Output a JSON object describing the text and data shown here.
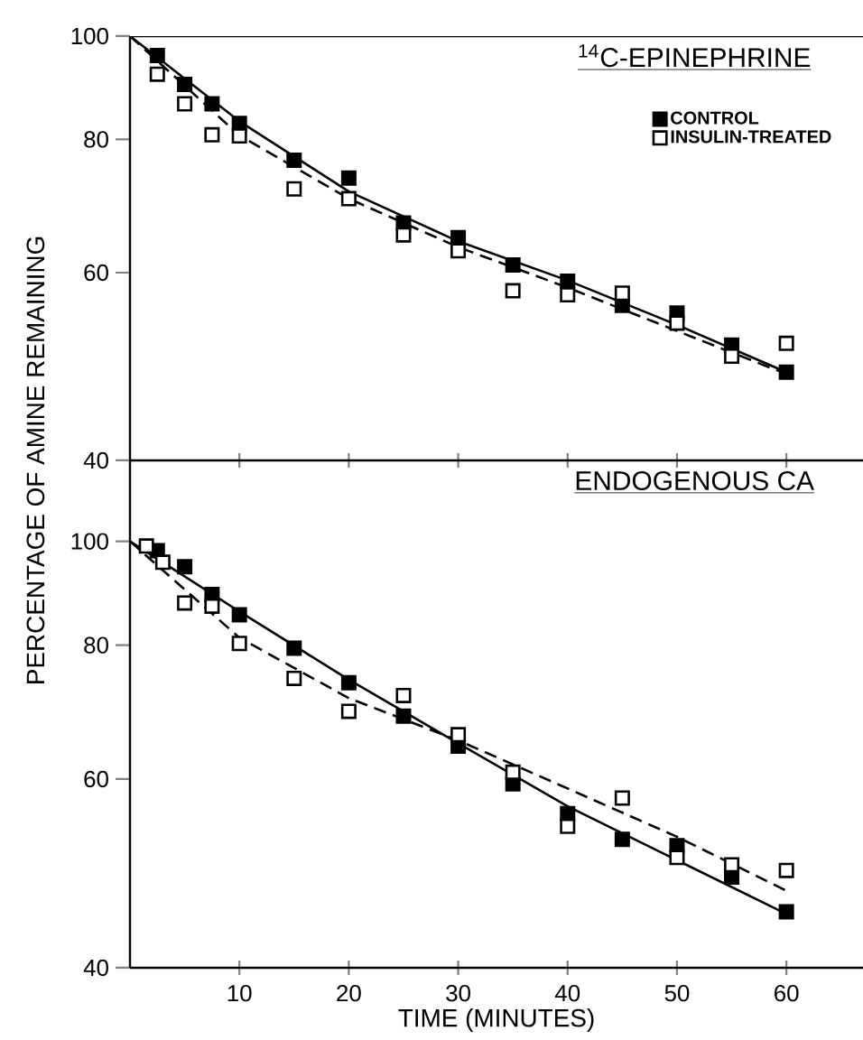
{
  "chart_data": [
    {
      "type": "scatter",
      "title": "$^{14}$C-EPINEPHRINE",
      "ylabel": "PERCENTAGE OF AMINE REMAINING",
      "xlim": [
        0,
        67
      ],
      "ylim": [
        40,
        100
      ],
      "log": "y",
      "tick_labels": "y",
      "legend": "top right",
      "xticks": [
        {
          "value": 10,
          "label": null
        },
        {
          "value": 20,
          "label": null
        },
        {
          "value": 30,
          "label": null
        },
        {
          "value": 40,
          "label": null
        },
        {
          "value": 50,
          "label": null
        },
        {
          "value": 60,
          "label": null
        }
      ],
      "yticks": [
        40,
        60,
        80,
        100
      ],
      "series": [
        {
          "name": "CONTROL",
          "marker": "square",
          "color": "#000000",
          "x": [
            2.5,
            5,
            7.5,
            10,
            15,
            20,
            25,
            30,
            35,
            40,
            45,
            50,
            55,
            60
          ],
          "values": [
            95.9,
            90.1,
            86.4,
            82.8,
            76.5,
            73.6,
            66.8,
            64.7,
            61.0,
            58.9,
            55.9,
            55.0,
            51.3,
            48.4
          ]
        },
        {
          "name": "INSULIN-TREATED",
          "marker": "square",
          "color": "#000000",
          "x": [
            2.5,
            5,
            7.5,
            10,
            15,
            20,
            25,
            30,
            35,
            40,
            45,
            50,
            55,
            60
          ],
          "values": [
            92.1,
            86.4,
            80.8,
            80.6,
            71.9,
            70.4,
            65.1,
            62.9,
            57.7,
            57.2,
            57.4,
            53.8,
            50.1,
            51.5
          ]
        },
        {
          "type": "line",
          "color": "#000000",
          "line_style": "solid",
          "x": [
            0,
            10,
            20,
            30,
            40,
            50,
            60
          ],
          "values": [
            100,
            83.2,
            71.5,
            64.2,
            59.0,
            53.6,
            48.4
          ]
        },
        {
          "type": "line",
          "color": "#000000",
          "line_style": "dashed",
          "x": [
            0,
            10,
            20,
            30,
            40,
            50,
            60
          ],
          "values": [
            100,
            80.7,
            70.4,
            63.4,
            58.1,
            52.9,
            48.2
          ]
        }
      ]
    },
    {
      "type": "scatter",
      "title": "ENDOGENOUS CA",
      "xlabel": "TIME (MINUTES)",
      "xlim": [
        0,
        67
      ],
      "ylim": [
        40,
        119
      ],
      "log": "y",
      "xticks": [
        10,
        20,
        30,
        40,
        50,
        60
      ],
      "yticks": [
        40,
        60,
        80,
        100
      ],
      "series": [
        {
          "marker": "square",
          "color": "#000000",
          "x": [
            2.5,
            5,
            7.5,
            10,
            15,
            20,
            25,
            30,
            35,
            40,
            45,
            50,
            55,
            60
          ],
          "values": [
            98.0,
            94.7,
            89.2,
            85.4,
            79.5,
            73.8,
            68.7,
            64.4,
            59.4,
            55.7,
            52.7,
            52.0,
            48.6,
            45.1
          ]
        },
        {
          "marker": "square",
          "color": "#000000",
          "x": [
            1.5,
            3,
            5,
            7.5,
            10,
            15,
            20,
            25,
            30,
            35,
            40,
            45,
            50,
            55,
            60
          ],
          "values": [
            99.0,
            95.6,
            87.6,
            87.0,
            80.3,
            74.5,
            69.4,
            71.8,
            66.0,
            60.9,
            54.2,
            57.6,
            50.7,
            49.9,
            49.3
          ]
        },
        {
          "type": "line",
          "color": "#000000",
          "line_style": "solid",
          "x": [
            0,
            10,
            20,
            30,
            40,
            50,
            60
          ],
          "values": [
            100,
            86.0,
            74.3,
            64.8,
            56.6,
            50.4,
            44.9
          ]
        },
        {
          "type": "line",
          "color": "#000000",
          "line_style": "dashed",
          "x": [
            0,
            10,
            20,
            30,
            40,
            50,
            60
          ],
          "values": [
            100,
            81.3,
            71.4,
            65.2,
            58.8,
            53.0,
            47.2
          ]
        }
      ]
    }
  ]
}
